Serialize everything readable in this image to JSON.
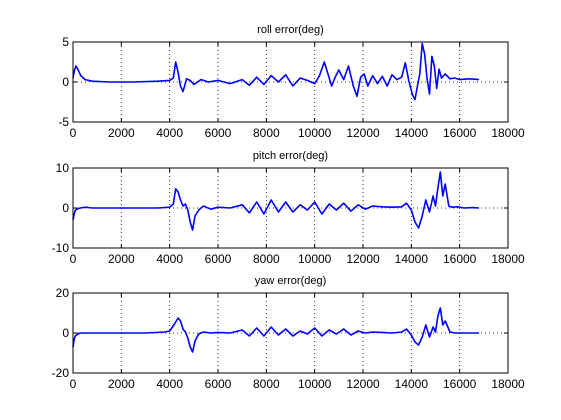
{
  "chart_data": [
    {
      "type": "line",
      "title": "roll error(deg)",
      "xlabel": "",
      "ylabel": "",
      "xlim": [
        0,
        18000
      ],
      "ylim": [
        -5,
        5
      ],
      "xticks": [
        0,
        2000,
        4000,
        6000,
        8000,
        10000,
        12000,
        14000,
        16000,
        18000
      ],
      "yticks": [
        -5,
        0,
        5
      ],
      "grid": true,
      "color": "#0000ff",
      "series": [
        {
          "x": [
            0,
            60,
            120,
            200,
            320,
            500,
            800,
            1500,
            2500,
            3500,
            4000,
            4150,
            4250,
            4350,
            4450,
            4550,
            4700,
            4850,
            5000,
            5300,
            5600,
            6000,
            6500,
            7000,
            7300,
            7600,
            7900,
            8200,
            8500,
            8800,
            9100,
            9400,
            9700,
            10000,
            10200,
            10400,
            10550,
            10700,
            10850,
            11000,
            11200,
            11400,
            11600,
            11750,
            11900,
            12050,
            12200,
            12400,
            12600,
            12800,
            13000,
            13200,
            13400,
            13600,
            13750,
            13900,
            14050,
            14150,
            14250,
            14350,
            14450,
            14550,
            14650,
            14750,
            14850,
            14950,
            15050,
            15150,
            15250,
            15400,
            15600,
            15800,
            16000,
            16400,
            16800
          ],
          "y": [
            0.5,
            1.5,
            2.0,
            1.6,
            0.8,
            0.3,
            0.1,
            0.0,
            0.0,
            0.1,
            0.2,
            0.5,
            2.5,
            1.2,
            -0.5,
            -1.2,
            0.4,
            0.2,
            -0.3,
            0.3,
            0.0,
            0.2,
            -0.2,
            0.3,
            -0.4,
            0.6,
            -0.3,
            0.8,
            0.0,
            0.9,
            -0.5,
            0.5,
            0.2,
            -0.2,
            0.8,
            2.5,
            1.0,
            -0.5,
            0.6,
            1.5,
            0.3,
            2.0,
            -0.5,
            -1.8,
            0.6,
            1.0,
            -0.5,
            0.8,
            -0.2,
            0.7,
            -0.5,
            0.9,
            0.3,
            0.6,
            2.4,
            0.1,
            -1.6,
            -2.2,
            -0.5,
            1.0,
            4.8,
            3.5,
            0.5,
            -1.5,
            3.2,
            2.0,
            -0.8,
            1.6,
            0.5,
            1.0,
            0.4,
            0.5,
            0.3,
            0.4,
            0.3
          ]
        }
      ]
    },
    {
      "type": "line",
      "title": "pitch error(deg)",
      "xlabel": "",
      "ylabel": "",
      "xlim": [
        0,
        18000
      ],
      "ylim": [
        -10,
        10
      ],
      "xticks": [
        0,
        2000,
        4000,
        6000,
        8000,
        10000,
        12000,
        14000,
        16000,
        18000
      ],
      "yticks": [
        -10,
        0,
        10
      ],
      "grid": true,
      "color": "#0000ff",
      "series": [
        {
          "x": [
            0,
            50,
            100,
            200,
            300,
            500,
            800,
            1500,
            2500,
            3500,
            4000,
            4150,
            4250,
            4350,
            4450,
            4550,
            4650,
            4750,
            4850,
            4950,
            5050,
            5200,
            5400,
            5700,
            6000,
            6500,
            7000,
            7300,
            7600,
            7900,
            8200,
            8500,
            8800,
            9100,
            9400,
            9700,
            10000,
            10300,
            10600,
            10900,
            11200,
            11500,
            11800,
            12100,
            12400,
            12800,
            13200,
            13600,
            13800,
            14000,
            14150,
            14300,
            14450,
            14600,
            14750,
            14900,
            15000,
            15100,
            15200,
            15300,
            15400,
            15550,
            15700,
            15900,
            16200,
            16500,
            16800
          ],
          "y": [
            -3.0,
            -1.5,
            -0.5,
            -0.2,
            0.0,
            0.2,
            0.0,
            0.0,
            0.0,
            0.0,
            0.2,
            1.0,
            4.8,
            4.0,
            2.0,
            0.5,
            1.0,
            -0.5,
            -3.5,
            -5.5,
            -2.0,
            -0.5,
            0.5,
            -0.3,
            0.2,
            0.0,
            0.8,
            -1.2,
            1.5,
            -1.5,
            2.0,
            -1.0,
            1.5,
            -1.0,
            0.8,
            -0.5,
            1.5,
            -1.5,
            1.0,
            -0.5,
            1.2,
            -0.8,
            0.8,
            -0.3,
            0.5,
            0.3,
            0.2,
            0.3,
            1.2,
            -0.5,
            -3.5,
            -5.0,
            -2.0,
            2.0,
            -1.0,
            3.0,
            0.5,
            5.0,
            9.0,
            3.0,
            6.0,
            0.5,
            0.2,
            0.3,
            0.0,
            0.1,
            0.0
          ]
        }
      ]
    },
    {
      "type": "line",
      "title": "yaw error(deg)",
      "xlabel": "",
      "ylabel": "",
      "xlim": [
        0,
        18000
      ],
      "ylim": [
        -20,
        20
      ],
      "xticks": [
        0,
        2000,
        4000,
        6000,
        8000,
        10000,
        12000,
        14000,
        16000,
        18000
      ],
      "yticks": [
        -20,
        0,
        20
      ],
      "grid": true,
      "color": "#0000ff",
      "series": [
        {
          "x": [
            0,
            50,
            100,
            200,
            300,
            500,
            1000,
            2000,
            3000,
            3800,
            4000,
            4200,
            4350,
            4450,
            4550,
            4650,
            4750,
            4850,
            4950,
            5050,
            5200,
            5400,
            5700,
            6000,
            6500,
            7000,
            7300,
            7600,
            7900,
            8200,
            8500,
            8800,
            9100,
            9400,
            9700,
            10000,
            10300,
            10600,
            10900,
            11200,
            11500,
            11800,
            12100,
            12400,
            12800,
            13200,
            13600,
            13800,
            14000,
            14150,
            14300,
            14450,
            14600,
            14750,
            14900,
            15000,
            15100,
            15200,
            15300,
            15400,
            15600,
            15800,
            16200,
            16800
          ],
          "y": [
            -7.0,
            -3.0,
            -1.5,
            -0.5,
            0.0,
            0.0,
            0.0,
            0.0,
            0.0,
            0.5,
            1.0,
            4.5,
            7.5,
            6.0,
            2.0,
            0.5,
            -2.5,
            -7.0,
            -9.5,
            -4.0,
            -0.5,
            0.5,
            0.0,
            0.3,
            0.0,
            1.5,
            -1.5,
            2.5,
            -1.5,
            3.0,
            -1.0,
            2.0,
            -1.5,
            1.0,
            -0.5,
            2.5,
            -1.5,
            1.5,
            -0.5,
            2.0,
            -1.0,
            1.0,
            0.0,
            0.5,
            0.3,
            0.0,
            0.5,
            2.0,
            -1.0,
            -4.5,
            -6.0,
            -2.0,
            4.0,
            -2.0,
            3.0,
            0.5,
            8.5,
            12.5,
            4.0,
            6.0,
            0.5,
            0.0,
            0.0,
            0.0
          ]
        }
      ]
    }
  ]
}
